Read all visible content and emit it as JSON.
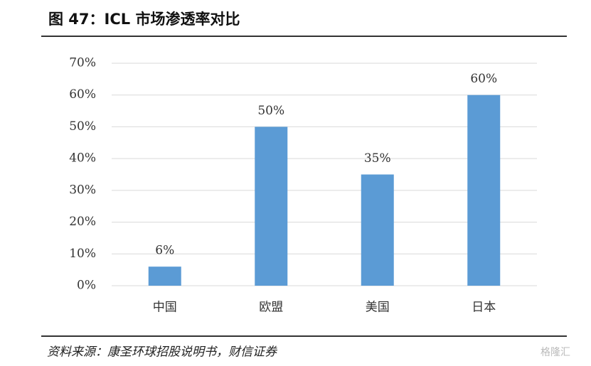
{
  "chart_data": {
    "type": "bar",
    "title": "图 47：ICL 市场渗透率对比",
    "categories": [
      "中国",
      "欧盟",
      "美国",
      "日本"
    ],
    "values": [
      6,
      50,
      35,
      60
    ],
    "value_labels": [
      "6%",
      "50%",
      "35%",
      "60%"
    ],
    "color": "#5b9bd5",
    "ylim": [
      0,
      70
    ],
    "yticks": [
      {
        "value": 0,
        "label": "0%"
      },
      {
        "value": 10,
        "label": "10%"
      },
      {
        "value": 20,
        "label": "20%"
      },
      {
        "value": 30,
        "label": "30%"
      },
      {
        "value": 40,
        "label": "40%"
      },
      {
        "value": 50,
        "label": "50%"
      },
      {
        "value": 60,
        "label": "60%"
      },
      {
        "value": 70,
        "label": "70%"
      }
    ],
    "grid": true,
    "source": "资料来源：康圣环球招股说明书，财信证券",
    "watermark": "格隆汇"
  }
}
